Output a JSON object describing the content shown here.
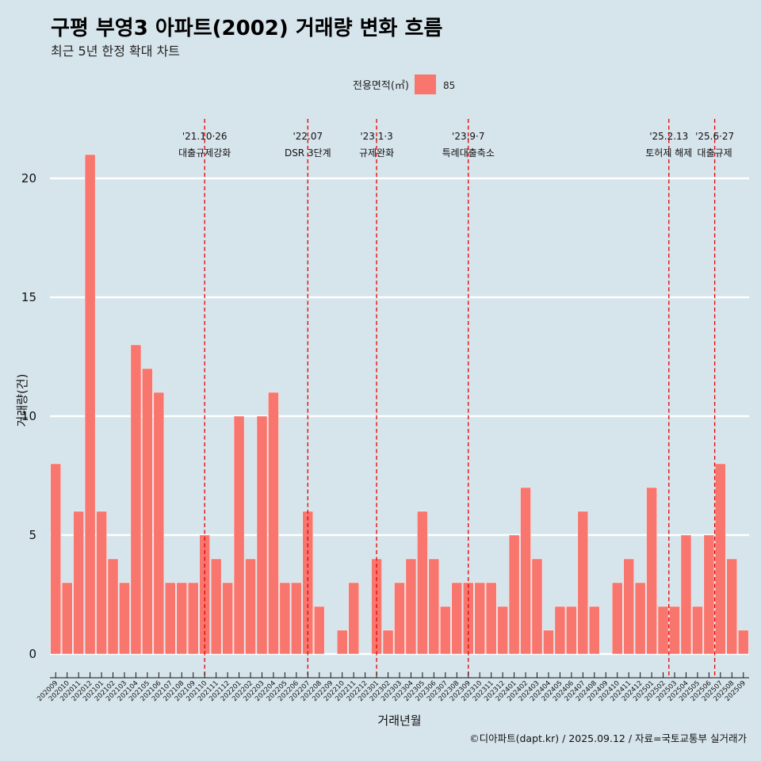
{
  "title": "구평 부영3 아파트(2002) 거래량 변화 흐름",
  "subtitle": "최근 5년 한정 확대 차트",
  "caption": "©디아파트(dapt.kr) / 2025.09.12 / 자료=국토교통부 실거래가",
  "legend": {
    "title": "전용면적(㎡)",
    "label": "85",
    "color": "#f8766d"
  },
  "chart_data": {
    "type": "bar",
    "xlabel": "거래년월",
    "ylabel": "거래량(건)",
    "ylim": [
      -0.9,
      22.5
    ],
    "yticks": [
      0,
      5,
      10,
      15,
      20
    ],
    "grid": true,
    "legend_position": "top",
    "categories": [
      "202009",
      "202010",
      "202011",
      "202012",
      "202101",
      "202102",
      "202103",
      "202104",
      "202105",
      "202106",
      "202107",
      "202108",
      "202109",
      "202110",
      "202111",
      "202112",
      "202201",
      "202202",
      "202203",
      "202204",
      "202205",
      "202206",
      "202207",
      "202208",
      "202209",
      "202210",
      "202211",
      "202212",
      "202301",
      "202302",
      "202303",
      "202304",
      "202305",
      "202306",
      "202307",
      "202308",
      "202309",
      "202310",
      "202311",
      "202312",
      "202401",
      "202402",
      "202403",
      "202404",
      "202405",
      "202406",
      "202407",
      "202408",
      "202409",
      "202410",
      "202411",
      "202412",
      "202501",
      "202502",
      "202503",
      "202504",
      "202505",
      "202506",
      "202507",
      "202508",
      "202509"
    ],
    "series": [
      {
        "name": "85",
        "values": [
          8,
          3,
          6,
          21,
          6,
          4,
          3,
          13,
          12,
          11,
          3,
          3,
          3,
          5,
          4,
          3,
          10,
          4,
          10,
          11,
          3,
          3,
          6,
          2,
          0,
          1,
          3,
          0,
          4,
          1,
          3,
          4,
          6,
          4,
          2,
          3,
          3,
          3,
          3,
          2,
          5,
          7,
          4,
          1,
          2,
          2,
          6,
          2,
          0,
          3,
          4,
          3,
          7,
          2,
          2,
          5,
          2,
          5,
          8,
          4,
          1
        ]
      }
    ],
    "events": [
      {
        "x": 13,
        "date": "'21.10·26",
        "label": "대출규제강화",
        "font_small": false
      },
      {
        "x": 22,
        "date": "'22.07",
        "label": "DSR 3단계",
        "font_small": false
      },
      {
        "x": 28,
        "date": "'23.1·3",
        "label": "규제완화",
        "font_small": false
      },
      {
        "x": 36,
        "date": "'23.9·7",
        "label": "특례대출축소",
        "font_small": false
      },
      {
        "x": 53.5,
        "date": "'25.2.13",
        "label": "토허제 해제",
        "font_small": true
      },
      {
        "x": 57.5,
        "date": "'25.6·27",
        "label": "대출규제",
        "font_small": false
      }
    ]
  }
}
